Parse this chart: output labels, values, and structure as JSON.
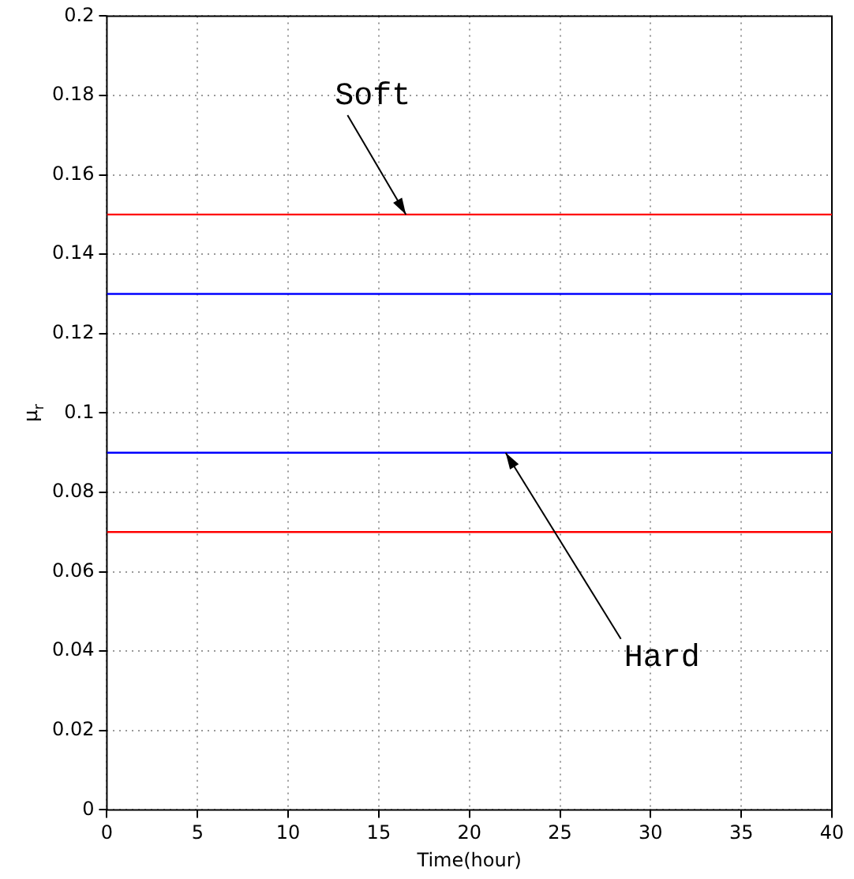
{
  "chart_data": {
    "type": "line",
    "xlabel": "Time(hour)",
    "ylabel": "μ$_{r}$",
    "ref_lines": [
      {
        "axis": "y",
        "value": 0.15,
        "color": "#ff0000",
        "line_style": "solid"
      },
      {
        "axis": "y",
        "value": 0.13,
        "color": "#0000ff",
        "line_style": "solid"
      },
      {
        "axis": "y",
        "value": 0.09,
        "color": "#0000ff",
        "line_style": "solid"
      },
      {
        "axis": "y",
        "value": 0.07,
        "color": "#ff0000",
        "line_style": "solid"
      }
    ],
    "xlim": [
      0,
      40
    ],
    "xticks": [
      0,
      5,
      10,
      15,
      20,
      25,
      30,
      35,
      40
    ],
    "ylim": [
      0,
      0.2
    ],
    "yticks": [
      0,
      0.02,
      0.04,
      0.06,
      0.08,
      0.1,
      0.12,
      0.14,
      0.16,
      0.18,
      0.2
    ],
    "grid": true,
    "annotations": [
      {
        "text": "Soft",
        "x": 16.5,
        "y": 0.15
      },
      {
        "text": "Hard",
        "x": 22,
        "y": 0.09
      }
    ]
  }
}
